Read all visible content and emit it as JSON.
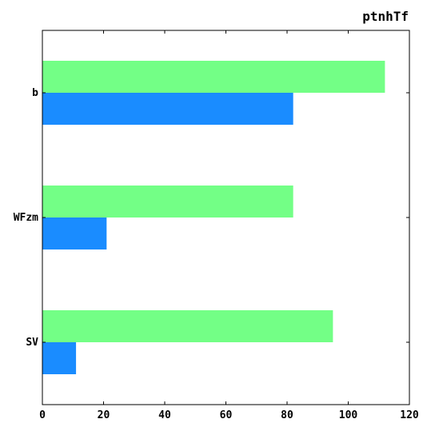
{
  "chart_data": {
    "type": "bar",
    "orientation": "horizontal",
    "title": "ptnhTf",
    "xlabel": "",
    "ylabel": "",
    "categories": [
      "b",
      "WFzm",
      "SV"
    ],
    "series": [
      {
        "color": "#73ff86",
        "values": [
          112,
          82,
          95
        ]
      },
      {
        "color": "#1a8cff",
        "values": [
          82,
          21,
          11
        ]
      }
    ],
    "xlim": [
      0,
      120
    ],
    "xticks": [
      0,
      20,
      40,
      60,
      80,
      100,
      120
    ],
    "grid": false,
    "legend": "none"
  }
}
